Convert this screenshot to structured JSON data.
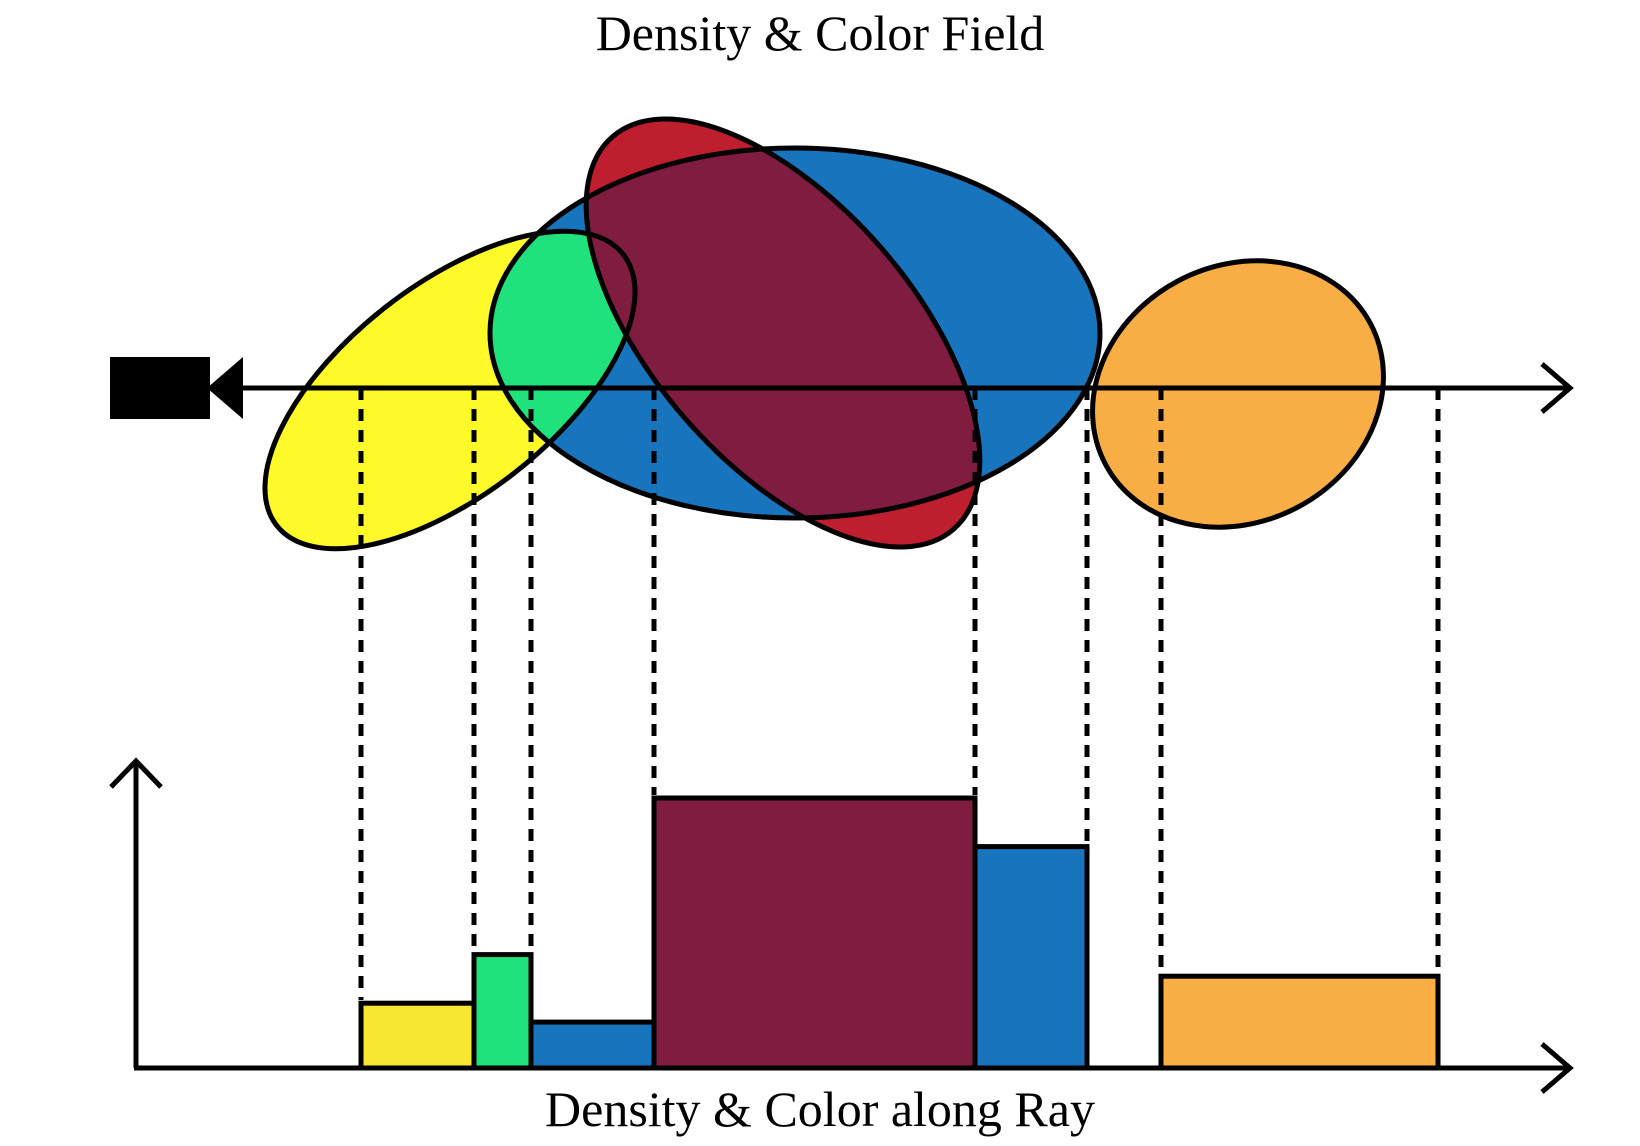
{
  "diagram": {
    "top_title": "Density & Color Field",
    "bottom_title": "Density & Color along Ray",
    "colors": {
      "yellow": "#FEF928",
      "green": "#1FE27C",
      "blue": "#1874BC",
      "red": "#BE1E2D",
      "maroon": "#811C41",
      "orange_red": "#FF4515",
      "orange": "#F9AD45",
      "bar_yellow": "#F9E632",
      "outline": "#000000"
    },
    "field_shapes": [
      {
        "name": "yellow-ellipse",
        "color": "#FEF928"
      },
      {
        "name": "blue-ellipse",
        "color": "#1874BC"
      },
      {
        "name": "red-ellipse",
        "color": "#BE1E2D"
      },
      {
        "name": "orange-ellipse",
        "color": "#F9AD45"
      }
    ],
    "overlap_colors": {
      "yellow_blue": "#1FE27C",
      "yellow_red": "#FF4515",
      "blue_red": "#811C41"
    },
    "ray_segments": [
      {
        "name": "segment-yellow",
        "color": "#F9E632",
        "density": 0.24
      },
      {
        "name": "segment-green",
        "color": "#1FE27C",
        "density": 0.42
      },
      {
        "name": "segment-blue-low",
        "color": "#1874BC",
        "density": 0.17
      },
      {
        "name": "segment-maroon",
        "color": "#811C41",
        "density": 1.0
      },
      {
        "name": "segment-blue-high",
        "color": "#1874BC",
        "density": 0.82
      },
      {
        "name": "segment-orange",
        "color": "#F9AD45",
        "density": 0.34
      }
    ]
  }
}
